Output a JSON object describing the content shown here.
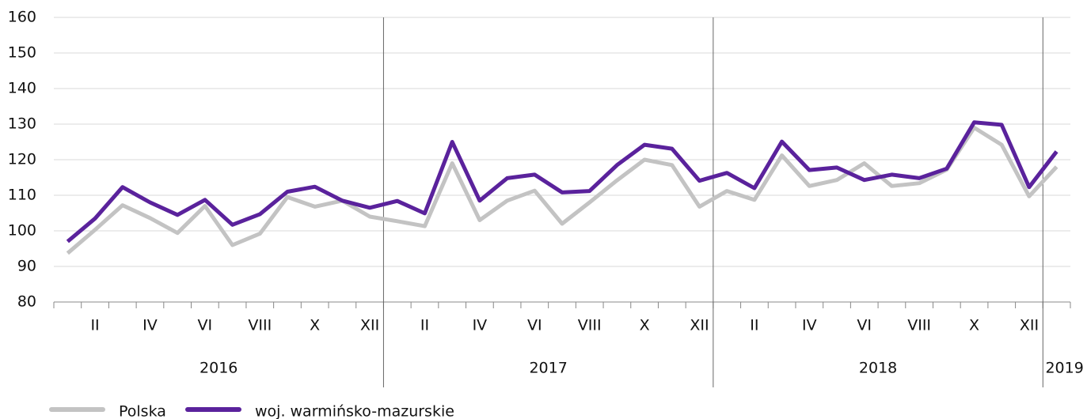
{
  "chart_data": {
    "type": "line",
    "categories": [
      null,
      "II",
      null,
      "IV",
      null,
      "VI",
      null,
      "VIII",
      null,
      "X",
      null,
      "XII",
      null,
      "II",
      null,
      "IV",
      null,
      "VI",
      null,
      "VIII",
      null,
      "X",
      null,
      "XII",
      null,
      "II",
      null,
      "IV",
      null,
      "VI",
      null,
      "VIII",
      null,
      "X",
      null,
      "XII",
      null
    ],
    "years": [
      "2016",
      "2017",
      "2018",
      "2019"
    ],
    "series": [
      {
        "name": "Polska",
        "color": "#c3c3c3",
        "values": [
          93.7,
          100.3,
          107.2,
          103.6,
          99.4,
          107,
          96,
          99.2,
          109.5,
          106.8,
          108.5,
          104,
          102.7,
          101.3,
          119,
          103,
          108.5,
          111.3,
          102,
          108,
          114.2,
          120,
          118.5,
          106.8,
          111.2,
          108.7,
          121.2,
          112.6,
          114.3,
          119,
          112.6,
          113.4,
          117.2,
          129,
          124.2,
          109.7,
          118
        ]
      },
      {
        "name": "woj. warmińsko-mazurskie",
        "color": "#5a229c",
        "values": [
          97,
          103.5,
          112.3,
          108,
          104.5,
          108.7,
          101.7,
          104.7,
          111,
          112.4,
          108.5,
          106.5,
          108.4,
          104.9,
          125,
          108.5,
          114.8,
          115.8,
          110.8,
          111.2,
          118.5,
          124.2,
          123.1,
          114.1,
          116.3,
          112,
          125.1,
          117.1,
          117.8,
          114.3,
          115.8,
          114.8,
          117.5,
          130.5,
          129.8,
          112.3,
          122.3
        ]
      }
    ],
    "ylim": [
      80,
      160
    ],
    "yticks": [
      80,
      90,
      100,
      110,
      120,
      130,
      140,
      150,
      160
    ],
    "grid": true
  }
}
